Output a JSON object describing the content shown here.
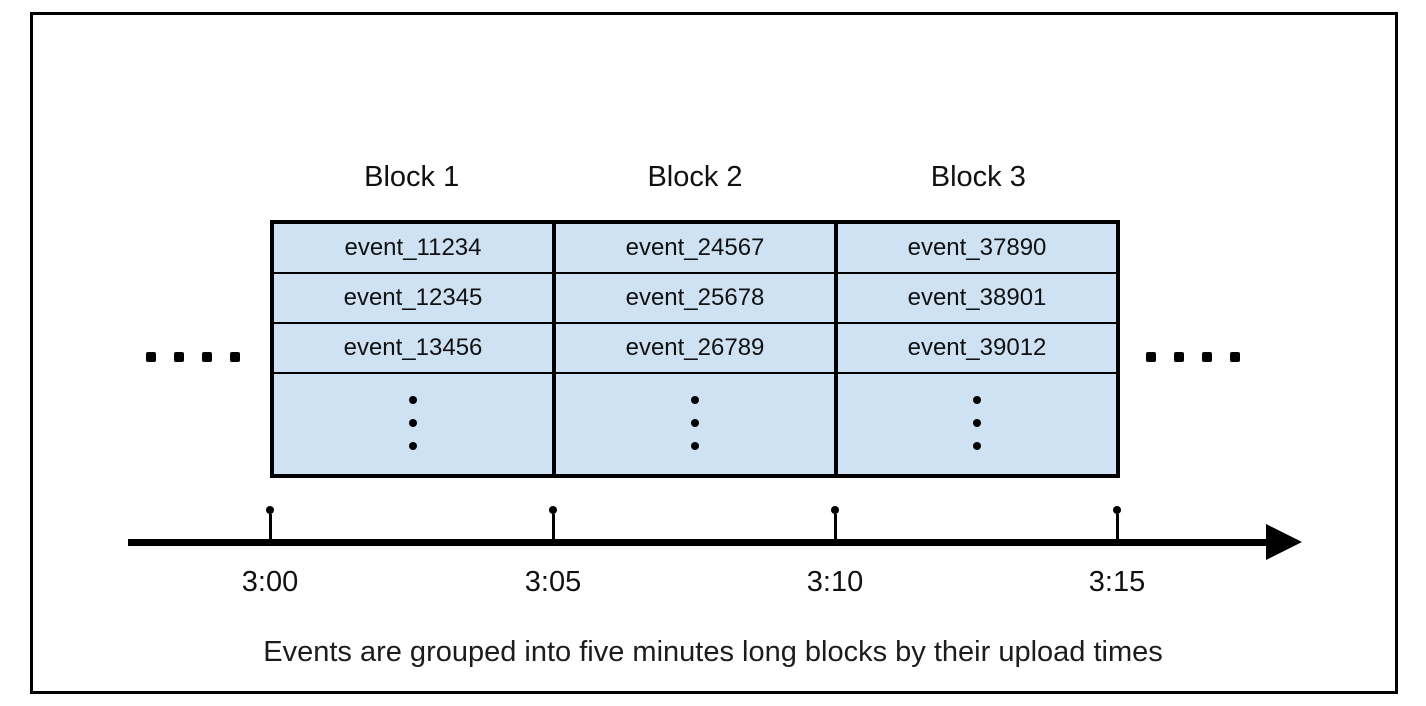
{
  "diagram": {
    "blocks": [
      {
        "label": "Block 1",
        "events": [
          "event_11234",
          "event_12345",
          "event_13456"
        ]
      },
      {
        "label": "Block 2",
        "events": [
          "event_24567",
          "event_25678",
          "event_26789"
        ]
      },
      {
        "label": "Block 3",
        "events": [
          "event_37890",
          "event_38901",
          "event_39012"
        ]
      }
    ],
    "timeline": {
      "tick_labels": [
        "3:00",
        "3:05",
        "3:10",
        "3:15"
      ]
    },
    "caption": "Events are grouped into five minutes long blocks by their upload times",
    "colors": {
      "block_fill": "#cfe2f3",
      "border": "#000000"
    },
    "icons": {
      "continuation_dots": "four-dots-ellipsis",
      "vertical_ellipsis": "vertical-ellipsis",
      "timeline_arrow": "right-arrow"
    }
  }
}
